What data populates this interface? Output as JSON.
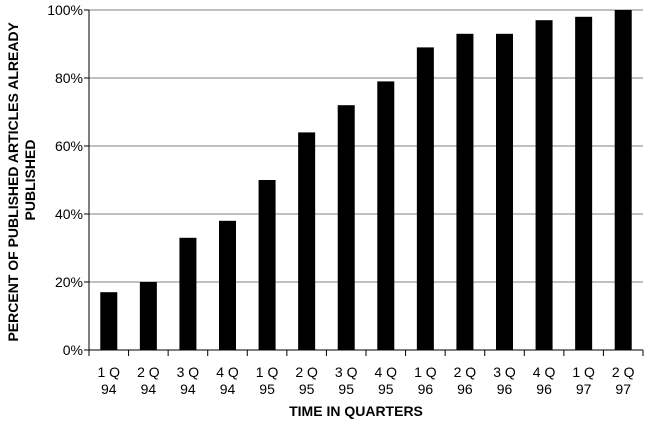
{
  "chart_data": {
    "type": "bar",
    "categories": [
      [
        "1 Q",
        "94"
      ],
      [
        "2 Q",
        "94"
      ],
      [
        "3 Q",
        "94"
      ],
      [
        "4 Q",
        "94"
      ],
      [
        "1 Q",
        "95"
      ],
      [
        "2 Q",
        "95"
      ],
      [
        "3 Q",
        "95"
      ],
      [
        "4 Q",
        "95"
      ],
      [
        "1 Q",
        "96"
      ],
      [
        "2 Q",
        "96"
      ],
      [
        "3 Q",
        "96"
      ],
      [
        "4 Q",
        "96"
      ],
      [
        "1 Q",
        "97"
      ],
      [
        "2 Q",
        "97"
      ]
    ],
    "values": [
      17,
      20,
      33,
      38,
      50,
      64,
      72,
      79,
      89,
      93,
      93,
      97,
      98,
      100
    ],
    "xlabel": "TIME IN QUARTERS",
    "ylabel_lines": [
      "PERCENT OF PUBLISHED ARTICLES ALREADY",
      "PUBLISHED"
    ],
    "ylim": [
      0,
      100
    ],
    "yticks": [
      0,
      20,
      40,
      60,
      80,
      100
    ],
    "ytick_labels": [
      "0%",
      "20%",
      "40%",
      "60%",
      "80%",
      "100%"
    ],
    "grid": "horizontal",
    "bar_color": "#000000",
    "grid_color": "#808080"
  }
}
